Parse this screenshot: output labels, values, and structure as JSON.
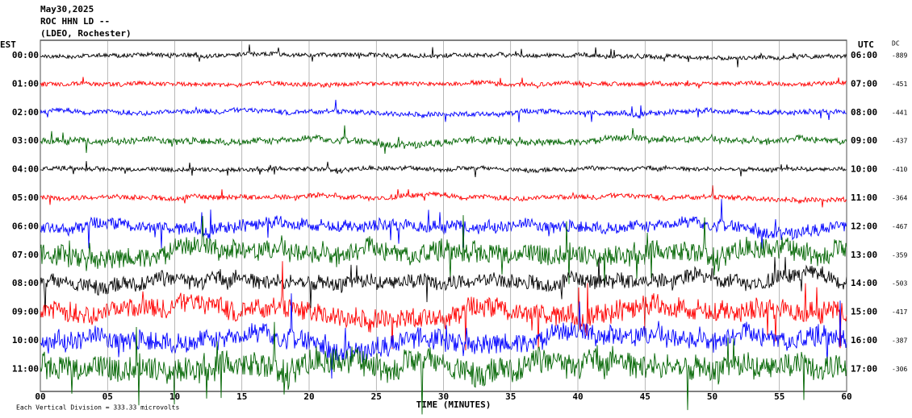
{
  "chart_data": {
    "type": "helicorder",
    "header": [
      "May30,2025",
      "ROC HHN LD --",
      "(LDEO, Rochester)"
    ],
    "left_title": "EST",
    "right_title": "UTC",
    "dc_title": "DC",
    "rows": [
      {
        "est": "00:00",
        "utc": "06:00",
        "dc": "-889",
        "color": "#000000"
      },
      {
        "est": "01:00",
        "utc": "07:00",
        "dc": "-451",
        "color": "#ff0000"
      },
      {
        "est": "02:00",
        "utc": "08:00",
        "dc": "-441",
        "color": "#0000ff"
      },
      {
        "est": "03:00",
        "utc": "09:00",
        "dc": "-437",
        "color": "#006400"
      },
      {
        "est": "04:00",
        "utc": "10:00",
        "dc": "-410",
        "color": "#000000"
      },
      {
        "est": "05:00",
        "utc": "11:00",
        "dc": "-364",
        "color": "#ff0000"
      },
      {
        "est": "06:00",
        "utc": "12:00",
        "dc": "-467",
        "color": "#0000ff"
      },
      {
        "est": "07:00",
        "utc": "13:00",
        "dc": "-359",
        "color": "#006400"
      },
      {
        "est": "08:00",
        "utc": "14:00",
        "dc": "-503",
        "color": "#000000"
      },
      {
        "est": "09:00",
        "utc": "15:00",
        "dc": "-417",
        "color": "#ff0000"
      },
      {
        "est": "10:00",
        "utc": "16:00",
        "dc": "-387",
        "color": "#0000ff"
      },
      {
        "est": "11:00",
        "utc": "17:00",
        "dc": "-306",
        "color": "#006400"
      }
    ],
    "xlim": [
      0,
      60
    ],
    "xticks": [
      {
        "value": 0,
        "label": "00"
      },
      {
        "value": 5,
        "label": "05"
      },
      10,
      15,
      20,
      25,
      30,
      35,
      40,
      45,
      50,
      55,
      60
    ],
    "xlabel": "TIME (MINUTES)",
    "footnote": "Each Vertical Division = 333.33 microvolts",
    "grid": true
  }
}
